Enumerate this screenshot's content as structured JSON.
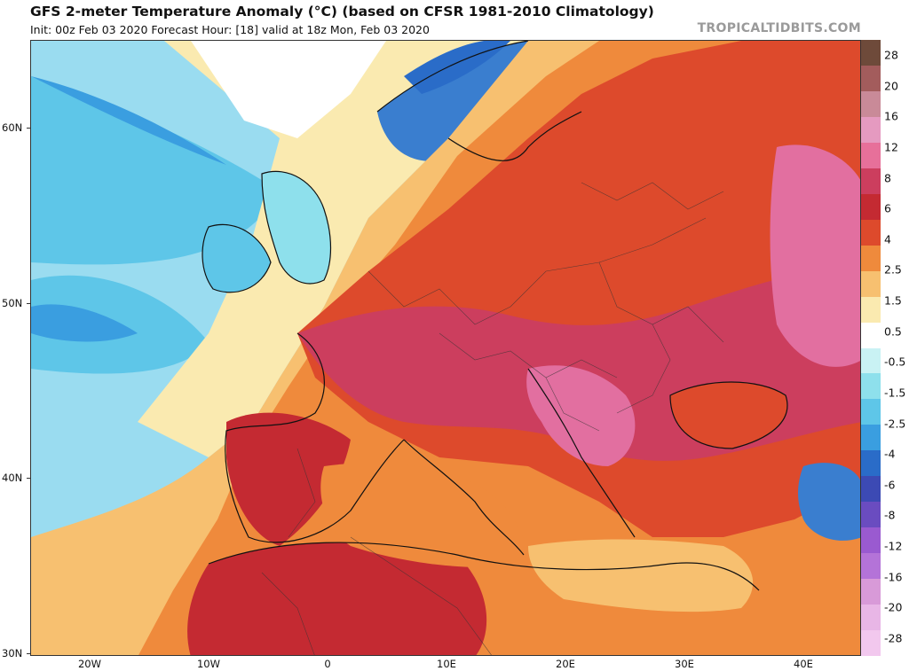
{
  "header": {
    "title": "GFS 2-meter Temperature Anomaly (°C) (based on CFSR 1981-2010 Climatology)",
    "subtitle": "Init: 00z Feb 03 2020   Forecast Hour: [18]   valid at 18z Mon, Feb 03 2020",
    "brand": "TROPICALTIDBITS.COM"
  },
  "axes": {
    "lat_labels": [
      {
        "text": "60N",
        "lat": 60
      },
      {
        "text": "50N",
        "lat": 50
      },
      {
        "text": "40N",
        "lat": 40
      },
      {
        "text": "30N",
        "lat": 30
      }
    ],
    "lon_labels": [
      {
        "text": "20W",
        "lon": -20
      },
      {
        "text": "10W",
        "lon": -10
      },
      {
        "text": "0",
        "lon": 0
      },
      {
        "text": "10E",
        "lon": 10
      },
      {
        "text": "20E",
        "lon": 20
      },
      {
        "text": "30E",
        "lon": 30
      },
      {
        "text": "40E",
        "lon": 40
      }
    ]
  },
  "colorbar": {
    "labels": [
      "28",
      "20",
      "16",
      "12",
      "8",
      "6",
      "4",
      "2.5",
      "1.5",
      "0.5",
      "-0.5",
      "-1.5",
      "-2.5",
      "-4",
      "-6",
      "-8",
      "-12",
      "-16",
      "-20",
      "-28"
    ],
    "colors": [
      "#6e4a3a",
      "#a35c5c",
      "#c98a98",
      "#e59ac0",
      "#e7709a",
      "#cc3e5e",
      "#c42a32",
      "#dd4a2c",
      "#ef8a3c",
      "#f7c070",
      "#faeab0",
      "#ffffff",
      "#c9f2f4",
      "#8ee0ec",
      "#5ec6e8",
      "#3a9ee0",
      "#2a6cc8",
      "#3c4ab4",
      "#6a4cc0",
      "#9a5ad0",
      "#b473d8",
      "#d89ad8",
      "#e8b6e6",
      "#f2c8ee"
    ]
  },
  "map": {
    "colors": {
      "ocean_cool": "#5ec6e8",
      "ocean_light": "#9adcf0",
      "ocean_pale": "#c9f2f4",
      "neutral": "#faeab0",
      "warm_sea": "#f7c070",
      "warm": "#ef8a3c",
      "hot": "#dd4a2c",
      "hotter": "#c42a32",
      "hottest": "#cc3e5e",
      "extreme": "#e26fa0",
      "scandinavia": "#3a7ecf"
    }
  }
}
